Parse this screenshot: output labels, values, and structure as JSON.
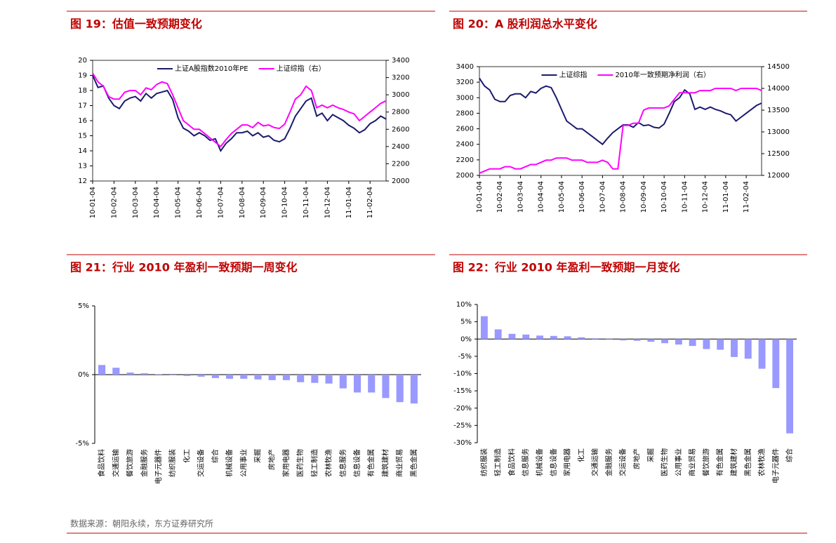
{
  "chart_data": [
    {
      "type": "line",
      "title": "图 19：估值一致预期变化",
      "categories": [
        "10-01-04",
        null,
        null,
        null,
        "10-02-04",
        null,
        null,
        null,
        "10-03-04",
        null,
        null,
        null,
        "10-04-04",
        null,
        null,
        null,
        "10-05-04",
        null,
        null,
        null,
        "10-06-04",
        null,
        null,
        null,
        "10-07-04",
        null,
        null,
        null,
        "10-08-04",
        null,
        null,
        null,
        "10-09-04",
        null,
        null,
        null,
        "10-10-04",
        null,
        null,
        null,
        "10-11-04",
        null,
        null,
        null,
        "10-12-04",
        null,
        null,
        null,
        "11-01-04",
        null,
        null,
        null,
        "11-02-04",
        null,
        null,
        null
      ],
      "series": [
        {
          "name": "上证A股指数2010年PE",
          "color": "#1a1a6e",
          "values": [
            19,
            18.2,
            18.3,
            17.5,
            17,
            16.8,
            17.3,
            17.5,
            17.6,
            17.3,
            17.8,
            17.5,
            17.8,
            17.9,
            18,
            17.4,
            16.2,
            15.5,
            15.3,
            15,
            15.2,
            15,
            14.7,
            14.8,
            14,
            14.5,
            14.8,
            15.2,
            15.2,
            15.3,
            15,
            15.2,
            14.9,
            15,
            14.7,
            14.6,
            14.8,
            15.5,
            16.3,
            16.8,
            17.3,
            17.5,
            16.3,
            16.5,
            16,
            16.4,
            16.2,
            16,
            15.7,
            15.5,
            15.2,
            15.4,
            15.8,
            16,
            16.3,
            16.1
          ]
        },
        {
          "name": "上证综指（右）",
          "color": "#ff00ff",
          "axis": "y2",
          "values": [
            3250,
            3150,
            3100,
            2980,
            2950,
            2950,
            3030,
            3050,
            3050,
            3000,
            3080,
            3060,
            3120,
            3150,
            3130,
            3000,
            2850,
            2700,
            2650,
            2600,
            2600,
            2550,
            2500,
            2450,
            2400,
            2480,
            2550,
            2600,
            2650,
            2650,
            2620,
            2680,
            2640,
            2650,
            2620,
            2610,
            2660,
            2800,
            2950,
            3000,
            3100,
            3050,
            2850,
            2880,
            2850,
            2880,
            2850,
            2830,
            2800,
            2780,
            2700,
            2750,
            2800,
            2850,
            2900,
            2930
          ]
        }
      ],
      "ylim": [
        12,
        20
      ],
      "yticks": [
        12,
        13,
        14,
        15,
        16,
        17,
        18,
        19,
        20
      ],
      "y2lim": [
        2000,
        3400
      ],
      "y2ticks": [
        2000,
        2200,
        2400,
        2600,
        2800,
        3000,
        3200,
        3400
      ],
      "legend": "top"
    },
    {
      "type": "line",
      "title": "图 20：A 股利润总水平变化",
      "categories": [
        "10-01-04",
        null,
        null,
        null,
        "10-02-04",
        null,
        null,
        null,
        "10-03-04",
        null,
        null,
        null,
        "10-04-04",
        null,
        null,
        null,
        "10-05-04",
        null,
        null,
        null,
        "10-06-04",
        null,
        null,
        null,
        "10-07-04",
        null,
        null,
        null,
        "10-08-04",
        null,
        null,
        null,
        "10-09-04",
        null,
        null,
        null,
        "10-10-04",
        null,
        null,
        null,
        "10-11-04",
        null,
        null,
        null,
        "10-12-04",
        null,
        null,
        null,
        "11-01-04",
        null,
        null,
        null,
        "11-02-04",
        null,
        null,
        null
      ],
      "series": [
        {
          "name": "上证综指",
          "color": "#1a1a6e",
          "values": [
            3250,
            3150,
            3100,
            2980,
            2950,
            2950,
            3030,
            3050,
            3050,
            3000,
            3080,
            3060,
            3120,
            3150,
            3130,
            3000,
            2850,
            2700,
            2650,
            2600,
            2600,
            2550,
            2500,
            2450,
            2400,
            2480,
            2550,
            2600,
            2650,
            2650,
            2620,
            2680,
            2640,
            2650,
            2620,
            2610,
            2660,
            2800,
            2950,
            3000,
            3100,
            3050,
            2850,
            2880,
            2850,
            2880,
            2850,
            2830,
            2800,
            2780,
            2700,
            2750,
            2800,
            2850,
            2900,
            2930
          ]
        },
        {
          "name": "2010年一致预期净利润（右）",
          "color": "#ff00ff",
          "axis": "y2",
          "values": [
            12050,
            12100,
            12150,
            12150,
            12150,
            12200,
            12200,
            12150,
            12150,
            12200,
            12250,
            12250,
            12300,
            12350,
            12350,
            12400,
            12400,
            12400,
            12350,
            12350,
            12350,
            12300,
            12300,
            12300,
            12350,
            12300,
            12150,
            12150,
            13150,
            13150,
            13200,
            13200,
            13500,
            13550,
            13550,
            13550,
            13550,
            13600,
            13750,
            13900,
            13900,
            13900,
            13900,
            13950,
            13950,
            13950,
            14000,
            14000,
            14000,
            14000,
            13950,
            14000,
            14000,
            14000,
            14000,
            13950
          ]
        }
      ],
      "ylim": [
        2000,
        3400
      ],
      "yticks": [
        2000,
        2200,
        2400,
        2600,
        2800,
        3000,
        3200,
        3400
      ],
      "y2lim": [
        12000,
        14500
      ],
      "y2ticks": [
        12000,
        12500,
        13000,
        13500,
        14000,
        14500
      ],
      "legend": "top"
    },
    {
      "type": "bar",
      "title": "图 21：行业 2010 年盈利一致预期一周变化",
      "color": "#9999ff",
      "categories": [
        "食品饮料",
        "交通运输",
        "餐饮旅游",
        "金融服务",
        "电子元器件",
        "纺织服装",
        "化工",
        "交运设备",
        "综合",
        "机械设备",
        "公用事业",
        "采掘",
        "房地产",
        "家用电器",
        "医药生物",
        "轻工制造",
        "农林牧渔",
        "信息服务",
        "信息设备",
        "有色金属",
        "建筑建材",
        "商业贸易",
        "黑色金属"
      ],
      "values": [
        0.7,
        0.5,
        0.15,
        0.1,
        0.02,
        -0.05,
        -0.1,
        -0.15,
        -0.25,
        -0.3,
        -0.3,
        -0.35,
        -0.4,
        -0.4,
        -0.55,
        -0.6,
        -0.65,
        -1.0,
        -1.3,
        -1.3,
        -1.7,
        -2.0,
        -2.1
      ],
      "ylim": [
        -5,
        5
      ],
      "yticks": [
        {
          "value": -5,
          "label": "-5%"
        },
        {
          "value": 0,
          "label": "0%"
        },
        {
          "value": 5,
          "label": "5%"
        }
      ]
    },
    {
      "type": "bar",
      "title": "图 22：行业 2010 年盈利一致预期一月变化",
      "color": "#9999ff",
      "categories": [
        "纺织服装",
        "轻工制造",
        "食品饮料",
        "信息服务",
        "机械设备",
        "信息设备",
        "家用电器",
        "化工",
        "交通运输",
        "金融服务",
        "交运设备",
        "房地产",
        "采掘",
        "医药生物",
        "公用事业",
        "商业贸易",
        "餐饮旅游",
        "有色金属",
        "建筑建材",
        "黑色金属",
        "农林牧渔",
        "电子元器件",
        "综合"
      ],
      "values": [
        6.6,
        2.8,
        1.5,
        1.3,
        1.0,
        0.9,
        0.8,
        0.5,
        0.2,
        0.1,
        -0.4,
        -0.5,
        -0.8,
        -1.2,
        -1.6,
        -2.0,
        -2.9,
        -3.1,
        -5.2,
        -5.7,
        -8.6,
        -14.2,
        -27.3
      ],
      "ylim": [
        -30,
        10
      ],
      "yticks": [
        {
          "value": -30,
          "label": "-30%"
        },
        {
          "value": -25,
          "label": "-25%"
        },
        {
          "value": -20,
          "label": "-20%"
        },
        {
          "value": -15,
          "label": "-15%"
        },
        {
          "value": -10,
          "label": "-10%"
        },
        {
          "value": -5,
          "label": "-5%"
        },
        {
          "value": 0,
          "label": "0%"
        },
        {
          "value": 5,
          "label": "5%"
        },
        {
          "value": 10,
          "label": "10%"
        }
      ]
    }
  ],
  "source": "数据来源：朝阳永续，东方证券研究所"
}
